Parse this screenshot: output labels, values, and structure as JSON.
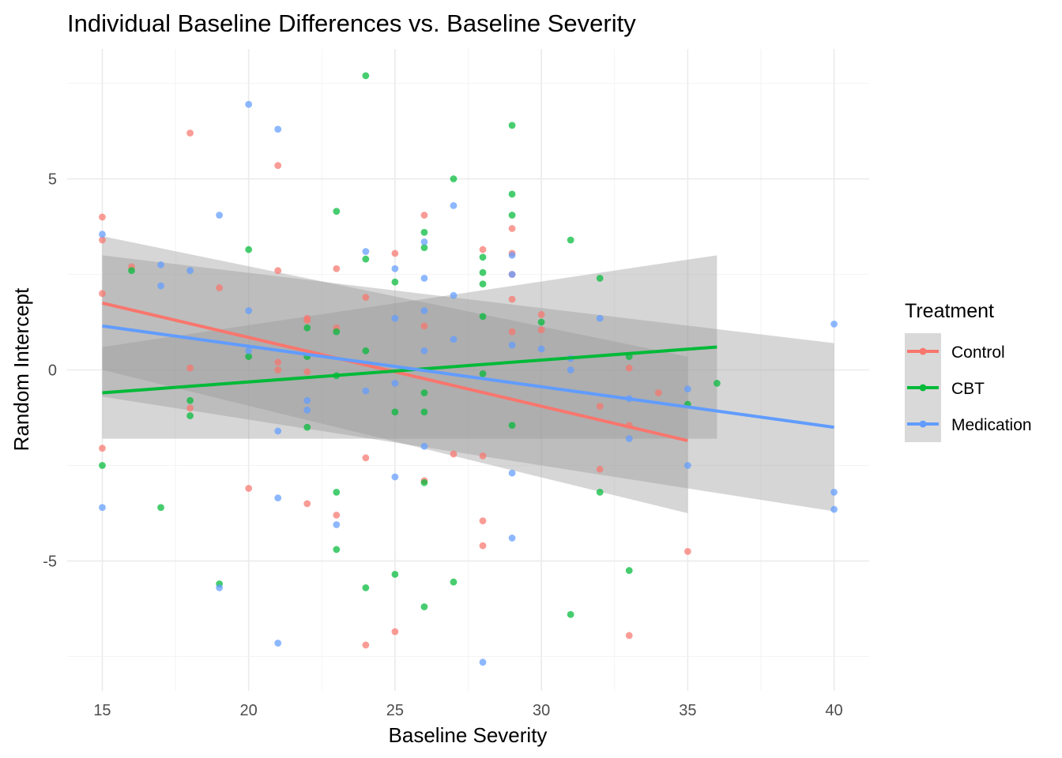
{
  "chart_data": {
    "type": "scatter",
    "title": "Individual Baseline Differences vs. Baseline Severity",
    "xlabel": "Baseline Severity",
    "ylabel": "Random Intercept",
    "xlim": [
      13.8,
      41.2
    ],
    "ylim": [
      -8.4,
      8.4
    ],
    "x_ticks": [
      15,
      20,
      25,
      30,
      35,
      40
    ],
    "y_ticks": [
      -5,
      0,
      5
    ],
    "grid": true,
    "legend": {
      "title": "Treatment",
      "position": "right"
    },
    "series": [
      {
        "name": "Control",
        "color": "#F8766D",
        "points": [
          [
            15,
            4.0
          ],
          [
            15,
            3.4
          ],
          [
            15,
            2.0
          ],
          [
            15,
            -2.05
          ],
          [
            16,
            2.7
          ],
          [
            18,
            6.2
          ],
          [
            18,
            0.05
          ],
          [
            18,
            -1.0
          ],
          [
            19,
            2.15
          ],
          [
            20,
            -3.1
          ],
          [
            21,
            5.35
          ],
          [
            21,
            2.6
          ],
          [
            21,
            0.2
          ],
          [
            21,
            0.0
          ],
          [
            22,
            1.35
          ],
          [
            22,
            1.3
          ],
          [
            22,
            -0.05
          ],
          [
            22,
            -3.5
          ],
          [
            23,
            2.65
          ],
          [
            23,
            1.1
          ],
          [
            23,
            -3.8
          ],
          [
            24,
            1.9
          ],
          [
            24,
            -2.3
          ],
          [
            24,
            -7.2
          ],
          [
            25,
            3.05
          ],
          [
            25,
            -6.85
          ],
          [
            26,
            4.05
          ],
          [
            26,
            1.15
          ],
          [
            26,
            -2.9
          ],
          [
            27,
            -2.2
          ],
          [
            28,
            3.15
          ],
          [
            28,
            -2.25
          ],
          [
            28,
            -3.95
          ],
          [
            28,
            -4.6
          ],
          [
            29,
            3.7
          ],
          [
            29,
            3.05
          ],
          [
            29,
            2.5
          ],
          [
            29,
            1.85
          ],
          [
            29,
            1.0
          ],
          [
            30,
            1.45
          ],
          [
            30,
            1.05
          ],
          [
            32,
            -0.95
          ],
          [
            32,
            -2.6
          ],
          [
            33,
            0.05
          ],
          [
            33,
            -1.45
          ],
          [
            33,
            -6.95
          ],
          [
            34,
            -0.6
          ],
          [
            35,
            -4.75
          ]
        ],
        "trend": {
          "x": [
            15,
            35
          ],
          "y": [
            1.75,
            -1.85
          ]
        },
        "ci_upper": [
          3.5,
          0.35
        ],
        "ci_lower": [
          0.0,
          -3.75
        ]
      },
      {
        "name": "CBT",
        "color": "#00BA38",
        "points": [
          [
            15,
            -2.5
          ],
          [
            16,
            2.6
          ],
          [
            17,
            -3.6
          ],
          [
            18,
            -0.8
          ],
          [
            18,
            -1.2
          ],
          [
            19,
            -5.6
          ],
          [
            20,
            3.15
          ],
          [
            20,
            0.35
          ],
          [
            22,
            1.1
          ],
          [
            22,
            0.35
          ],
          [
            22,
            -1.5
          ],
          [
            23,
            4.15
          ],
          [
            23,
            1.0
          ],
          [
            23,
            -0.15
          ],
          [
            23,
            -3.2
          ],
          [
            23,
            -4.7
          ],
          [
            24,
            7.7
          ],
          [
            24,
            2.9
          ],
          [
            24,
            0.5
          ],
          [
            24,
            -5.7
          ],
          [
            25,
            2.3
          ],
          [
            25,
            -1.1
          ],
          [
            25,
            -5.35
          ],
          [
            26,
            3.6
          ],
          [
            26,
            3.2
          ],
          [
            26,
            -0.6
          ],
          [
            26,
            -1.1
          ],
          [
            26,
            -2.95
          ],
          [
            26,
            -6.2
          ],
          [
            27,
            5.0
          ],
          [
            27,
            -5.55
          ],
          [
            28,
            2.95
          ],
          [
            28,
            2.55
          ],
          [
            28,
            2.25
          ],
          [
            28,
            1.4
          ],
          [
            28,
            -0.1
          ],
          [
            29,
            6.4
          ],
          [
            29,
            4.6
          ],
          [
            29,
            4.05
          ],
          [
            29,
            -1.45
          ],
          [
            30,
            1.25
          ],
          [
            31,
            3.4
          ],
          [
            31,
            -6.4
          ],
          [
            32,
            2.4
          ],
          [
            32,
            -3.2
          ],
          [
            33,
            0.35
          ],
          [
            33,
            -5.25
          ],
          [
            35,
            -0.9
          ],
          [
            36,
            -0.35
          ]
        ],
        "trend": {
          "x": [
            15,
            36
          ],
          "y": [
            -0.6,
            0.6
          ]
        },
        "ci_upper": [
          0.6,
          3.0
        ],
        "ci_lower": [
          -1.8,
          -1.8
        ]
      },
      {
        "name": "Medication",
        "color": "#619CFF",
        "points": [
          [
            15,
            3.55
          ],
          [
            15,
            -3.6
          ],
          [
            17,
            2.75
          ],
          [
            17,
            2.2
          ],
          [
            18,
            2.6
          ],
          [
            19,
            4.05
          ],
          [
            19,
            -5.7
          ],
          [
            20,
            6.95
          ],
          [
            20,
            1.55
          ],
          [
            20,
            0.5
          ],
          [
            21,
            6.3
          ],
          [
            21,
            -1.6
          ],
          [
            21,
            -3.35
          ],
          [
            21,
            -7.15
          ],
          [
            22,
            -0.8
          ],
          [
            22,
            -1.05
          ],
          [
            23,
            -4.05
          ],
          [
            24,
            3.1
          ],
          [
            24,
            -0.55
          ],
          [
            25,
            2.65
          ],
          [
            25,
            1.35
          ],
          [
            25,
            -0.35
          ],
          [
            25,
            -2.8
          ],
          [
            26,
            3.35
          ],
          [
            26,
            2.4
          ],
          [
            26,
            1.55
          ],
          [
            26,
            0.5
          ],
          [
            26,
            -2.0
          ],
          [
            27,
            4.3
          ],
          [
            27,
            1.95
          ],
          [
            27,
            0.8
          ],
          [
            28,
            -7.65
          ],
          [
            29,
            3.0
          ],
          [
            29,
            2.5
          ],
          [
            29,
            0.65
          ],
          [
            29,
            -2.7
          ],
          [
            29,
            -4.4
          ],
          [
            30,
            0.55
          ],
          [
            31,
            0.3
          ],
          [
            31,
            0.0
          ],
          [
            32,
            1.35
          ],
          [
            33,
            -0.75
          ],
          [
            33,
            -1.8
          ],
          [
            35,
            -0.5
          ],
          [
            35,
            -2.5
          ],
          [
            40,
            1.2
          ],
          [
            40,
            -3.2
          ],
          [
            40,
            -3.65
          ]
        ],
        "trend": {
          "x": [
            15,
            40
          ],
          "y": [
            1.15,
            -1.5
          ]
        },
        "ci_upper": [
          3.0,
          0.7
        ],
        "ci_lower": [
          -0.7,
          -3.7
        ]
      }
    ]
  }
}
